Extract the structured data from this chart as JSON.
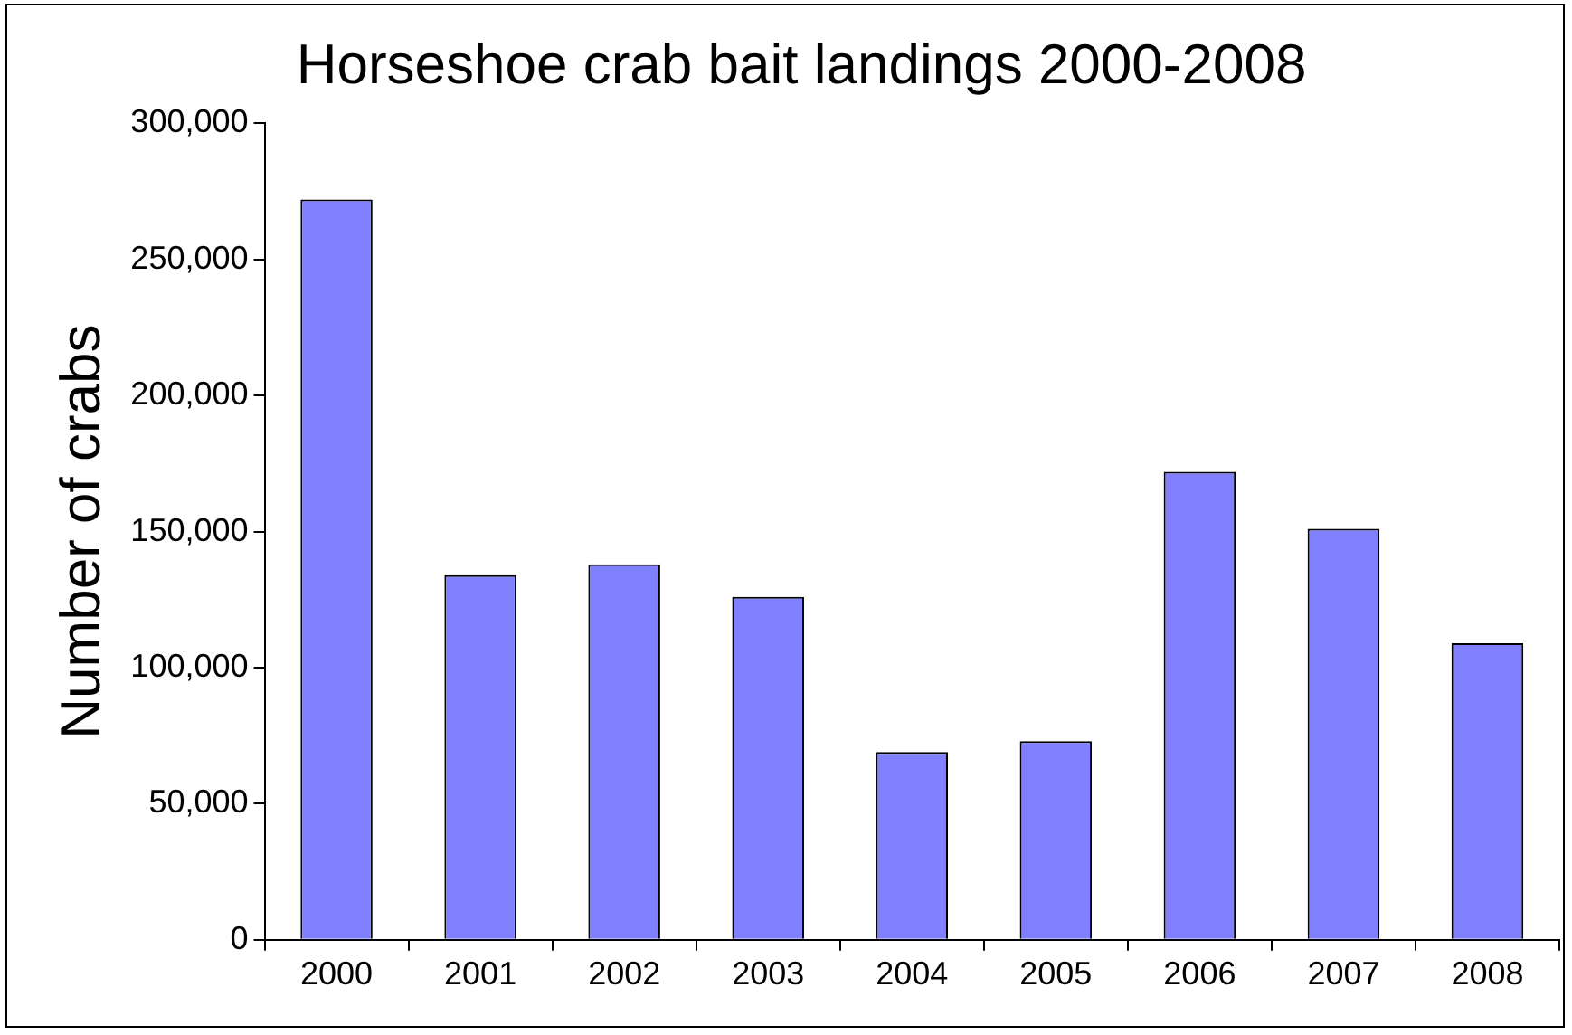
{
  "chart_data": {
    "type": "bar",
    "title": "Horseshoe crab bait landings 2000-2008",
    "ylabel": "Number of crabs",
    "categories": [
      "2000",
      "2001",
      "2002",
      "2003",
      "2004",
      "2005",
      "2006",
      "2007",
      "2008"
    ],
    "values": [
      272000,
      134000,
      138000,
      126000,
      69000,
      73000,
      172000,
      151000,
      109000
    ],
    "color": "#8080ff",
    "ylim": [
      0,
      300000
    ],
    "yticks": [
      0,
      {
        "value": 50000,
        "label": "50,000"
      },
      {
        "value": 100000,
        "label": "100,000"
      },
      {
        "value": 150000,
        "label": "150,000"
      },
      {
        "value": 200000,
        "label": "200,000"
      },
      {
        "value": 250000,
        "label": "250,000"
      },
      {
        "value": 300000,
        "label": "300,000"
      }
    ],
    "grid": false,
    "legend": false
  }
}
